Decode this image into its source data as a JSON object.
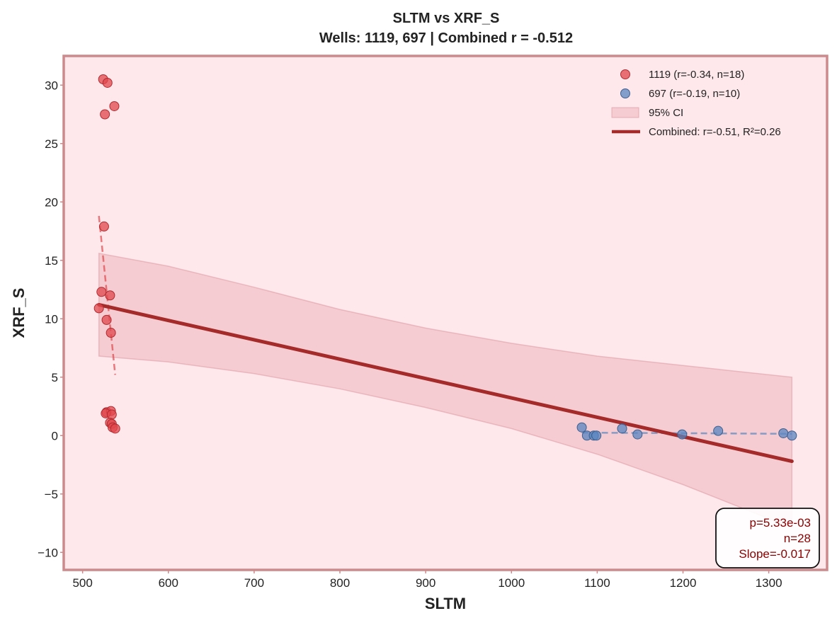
{
  "chart_data": {
    "type": "scatter",
    "title": "SLTM vs XRF_S",
    "subtitle": "Wells: 1119, 697 | Combined r = -0.512",
    "xlabel": "SLTM",
    "ylabel": "XRF_S",
    "xlim": [
      478,
      1368
    ],
    "ylim": [
      -11.5,
      32.5
    ],
    "xticks": [
      500,
      600,
      700,
      800,
      900,
      1000,
      1100,
      1200,
      1300
    ],
    "yticks": [
      -10,
      -5,
      0,
      5,
      10,
      15,
      20,
      25,
      30
    ],
    "grid": false,
    "legend_position": "top-right",
    "colors": {
      "background": "#ffe8eb",
      "frame": "#cc8a8c",
      "series_1119": "#e0474c",
      "series_697": "#5a86c0",
      "fit_combined": "#a52a2a",
      "ci_fill": "#d98c96",
      "stats_text": "#8b0000"
    },
    "series": [
      {
        "name": "1119 (r=-0.34, n=18)",
        "color": "#e0474c",
        "points": [
          {
            "x": 524,
            "y": 30.5
          },
          {
            "x": 529,
            "y": 30.2
          },
          {
            "x": 537,
            "y": 28.2
          },
          {
            "x": 526,
            "y": 27.5
          },
          {
            "x": 525,
            "y": 17.9
          },
          {
            "x": 522,
            "y": 12.3
          },
          {
            "x": 532,
            "y": 12.0
          },
          {
            "x": 519,
            "y": 10.9
          },
          {
            "x": 528,
            "y": 9.9
          },
          {
            "x": 533,
            "y": 8.8
          },
          {
            "x": 528,
            "y": 2.0
          },
          {
            "x": 533,
            "y": 2.1
          },
          {
            "x": 527,
            "y": 1.9
          },
          {
            "x": 534,
            "y": 1.8
          },
          {
            "x": 532,
            "y": 1.1
          },
          {
            "x": 534,
            "y": 1.0
          },
          {
            "x": 535,
            "y": 0.7
          },
          {
            "x": 538,
            "y": 0.6
          }
        ],
        "fit": {
          "x": [
            519,
            538
          ],
          "y": [
            18.8,
            5.2
          ]
        }
      },
      {
        "name": "697 (r=-0.19, n=10)",
        "color": "#5a86c0",
        "points": [
          {
            "x": 1082,
            "y": 0.7
          },
          {
            "x": 1088,
            "y": 0.0
          },
          {
            "x": 1096,
            "y": 0.0
          },
          {
            "x": 1099,
            "y": 0.0
          },
          {
            "x": 1129,
            "y": 0.6
          },
          {
            "x": 1147,
            "y": 0.1
          },
          {
            "x": 1199,
            "y": 0.1
          },
          {
            "x": 1241,
            "y": 0.4
          },
          {
            "x": 1317,
            "y": 0.2
          },
          {
            "x": 1327,
            "y": 0.0
          }
        ],
        "fit": {
          "x": [
            1082,
            1327
          ],
          "y": [
            0.25,
            0.15
          ]
        }
      }
    ],
    "combined_fit": {
      "name": "Combined: r=-0.51, R²=0.26",
      "x": [
        519,
        1327
      ],
      "y": [
        11.2,
        -2.2
      ]
    },
    "ci_band": {
      "name": "95% CI",
      "x": [
        519,
        600,
        700,
        800,
        900,
        1000,
        1100,
        1200,
        1327
      ],
      "upper": [
        15.6,
        14.5,
        12.7,
        10.8,
        9.2,
        7.9,
        6.8,
        6.0,
        5.0
      ],
      "lower": [
        6.8,
        6.3,
        5.3,
        4.0,
        2.4,
        0.6,
        -1.6,
        -4.2,
        -7.9
      ]
    },
    "stats_box": {
      "lines": [
        "p=5.33e-03",
        "n=28",
        "Slope=-0.017"
      ]
    }
  }
}
